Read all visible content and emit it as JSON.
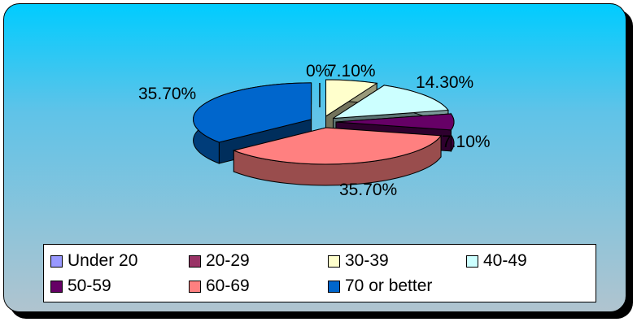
{
  "chart_data": {
    "type": "pie",
    "style": "3d-exploded",
    "categories": [
      "Under 20",
      "20-29",
      "30-39",
      "40-49",
      "50-59",
      "60-69",
      "70 or better"
    ],
    "values": [
      0,
      0,
      7.1,
      14.3,
      7.1,
      35.7,
      35.7
    ],
    "data_labels": [
      "0%",
      "",
      "7.10%",
      "14.30%",
      "7.10%",
      "35.70%",
      "35.70%"
    ],
    "legend_position": "bottom",
    "colors": {
      "Under 20": "#9999ff",
      "20-29": "#993366",
      "30-39": "#ffffcc",
      "40-49": "#ccffff",
      "50-59": "#660066",
      "60-69": "#ff8080",
      "70 or better": "#0066cc"
    }
  },
  "legend": {
    "items": [
      {
        "label": "Under 20",
        "color": "#9999ff"
      },
      {
        "label": "20-29",
        "color": "#993366"
      },
      {
        "label": "30-39",
        "color": "#ffffcc"
      },
      {
        "label": "40-49",
        "color": "#ccffff"
      },
      {
        "label": "50-59",
        "color": "#660066"
      },
      {
        "label": "60-69",
        "color": "#ff8080"
      },
      {
        "label": "70 or better",
        "color": "#0066cc"
      }
    ]
  }
}
